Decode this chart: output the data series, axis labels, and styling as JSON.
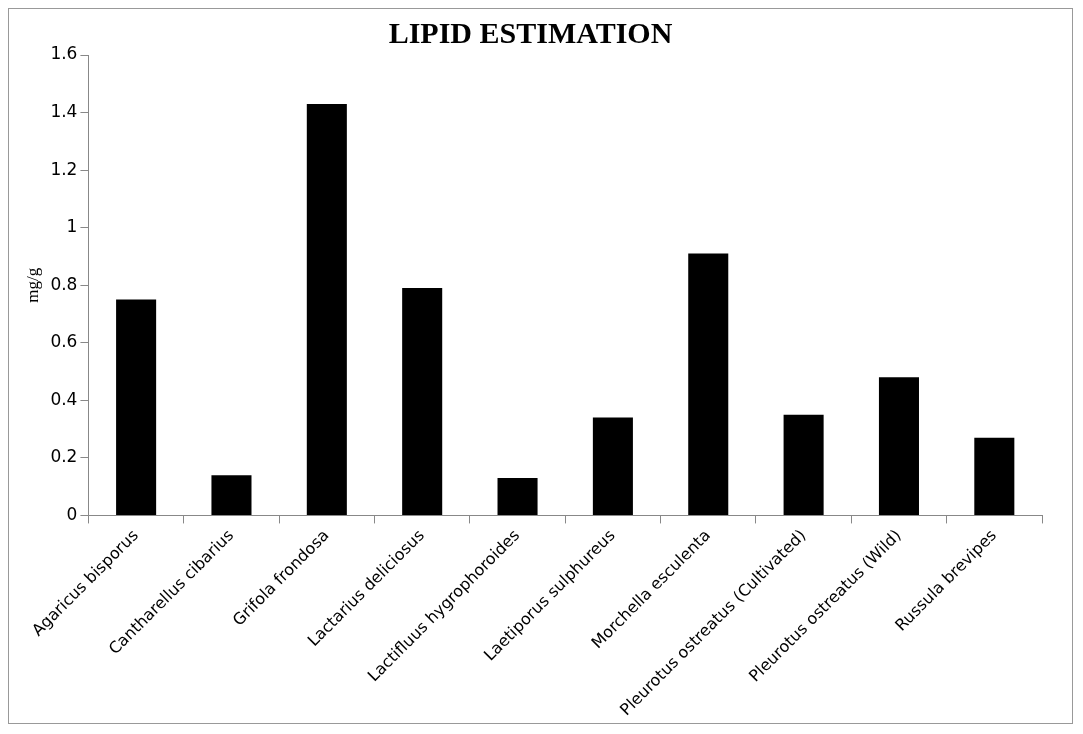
{
  "chart_data": {
    "type": "bar",
    "title": "LIPID ESTIMATION",
    "ylabel": "mg/g",
    "categories": [
      "Agaricus bisporus",
      "Cantharellus cibarius",
      "Grifola frondosa",
      "Lactarius deliciosus",
      "Lactifluus hygrophoroides",
      "Laetiporus sulphureus",
      "Morchella esculenta",
      "Pleurotus ostreatus (Cultivated)",
      "Pleurotus ostreatus (Wild)",
      "Russula brevipes"
    ],
    "values": [
      0.75,
      0.14,
      1.43,
      0.79,
      0.13,
      0.34,
      0.91,
      0.35,
      0.48,
      0.27
    ],
    "color": "#000000",
    "ylim": [
      0,
      1.6
    ],
    "yticks": [
      0,
      0.2,
      0.4,
      0.6,
      0.8,
      1,
      1.2,
      1.4,
      1.6
    ],
    "grid": false,
    "legend": false
  }
}
